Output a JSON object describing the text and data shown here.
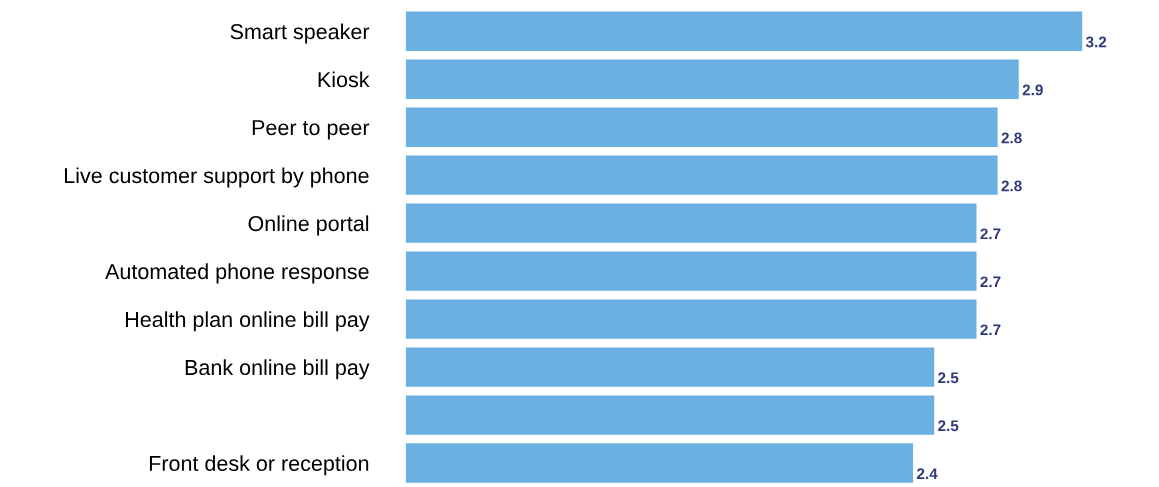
{
  "chart_data": {
    "type": "bar",
    "orientation": "horizontal",
    "categories": [
      "Smart speaker",
      "Kiosk",
      "Peer to peer",
      "Live customer support by phone",
      "Online portal",
      "Automated phone response",
      "Health plan online bill pay",
      "Bank online bill pay",
      null,
      "Front desk or reception"
    ],
    "values": [
      3.2,
      2.9,
      2.8,
      2.8,
      2.7,
      2.7,
      2.7,
      2.5,
      2.5,
      2.4
    ],
    "color": "#6ab1e2",
    "data_labels": true,
    "grid": false,
    "legend": false,
    "tick_labels": "y"
  }
}
